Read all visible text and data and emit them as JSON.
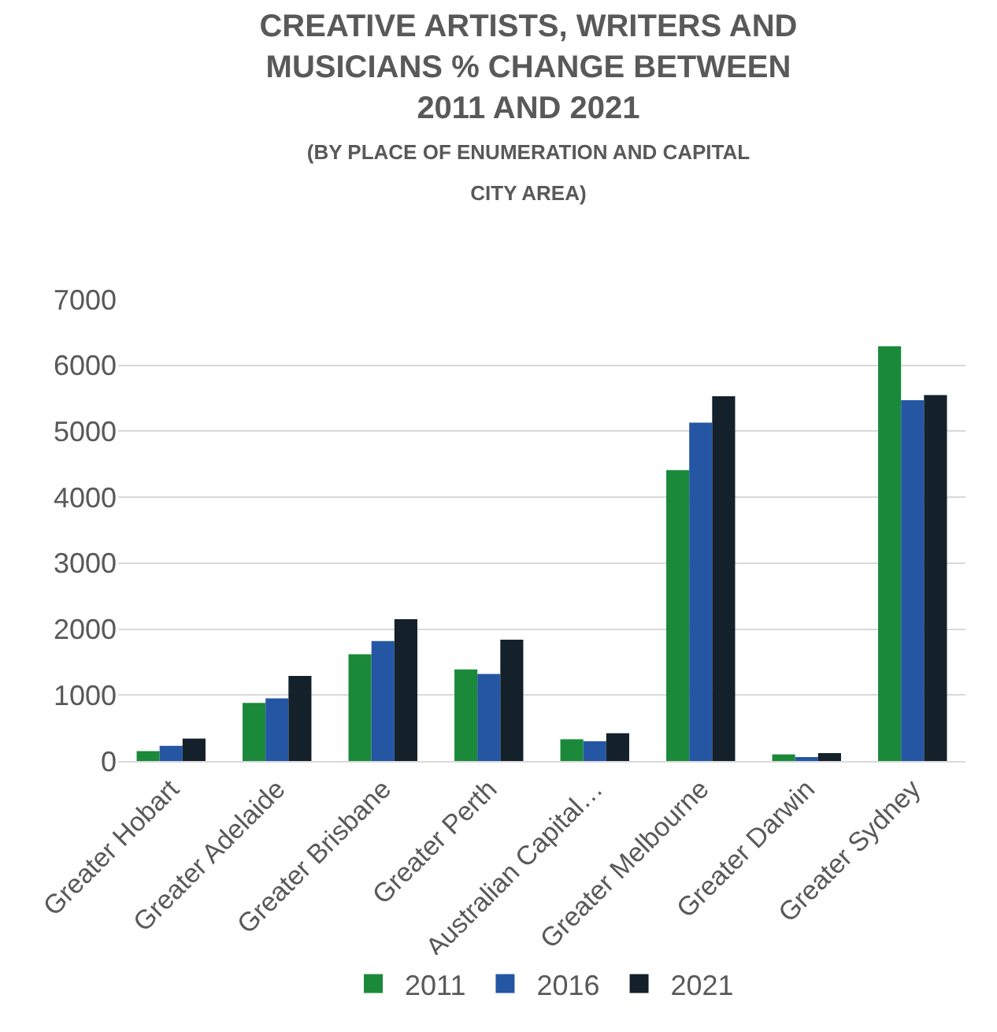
{
  "chart_data": {
    "type": "bar",
    "title": "CREATIVE ARTISTS, WRITERS AND MUSICIANS % CHANGE BETWEEN 2011 AND 2021",
    "subtitle": "(BY PLACE OF ENUMERATION AND CAPITAL CITY AREA)",
    "categories": [
      "Greater Hobart",
      "Greater Adelaide",
      "Greater Brisbane",
      "Greater Perth",
      "Australian Capital…",
      "Greater Melbourne",
      "Greater Darwin",
      "Greater Sydney"
    ],
    "series": [
      {
        "name": "2011",
        "color": "#1a8a3a",
        "values": [
          150,
          880,
          1620,
          1390,
          330,
          4410,
          100,
          6290
        ]
      },
      {
        "name": "2016",
        "color": "#2456a4",
        "values": [
          230,
          950,
          1820,
          1320,
          300,
          5130,
          60,
          5470
        ]
      },
      {
        "name": "2021",
        "color": "#14202a",
        "values": [
          340,
          1290,
          2150,
          1840,
          420,
          5530,
          120,
          5550
        ]
      }
    ],
    "ylim": [
      0,
      7000
    ],
    "yticks": [
      0,
      1000,
      2000,
      3000,
      4000,
      5000,
      6000,
      7000
    ],
    "grid": "y",
    "legend": "bottom"
  }
}
